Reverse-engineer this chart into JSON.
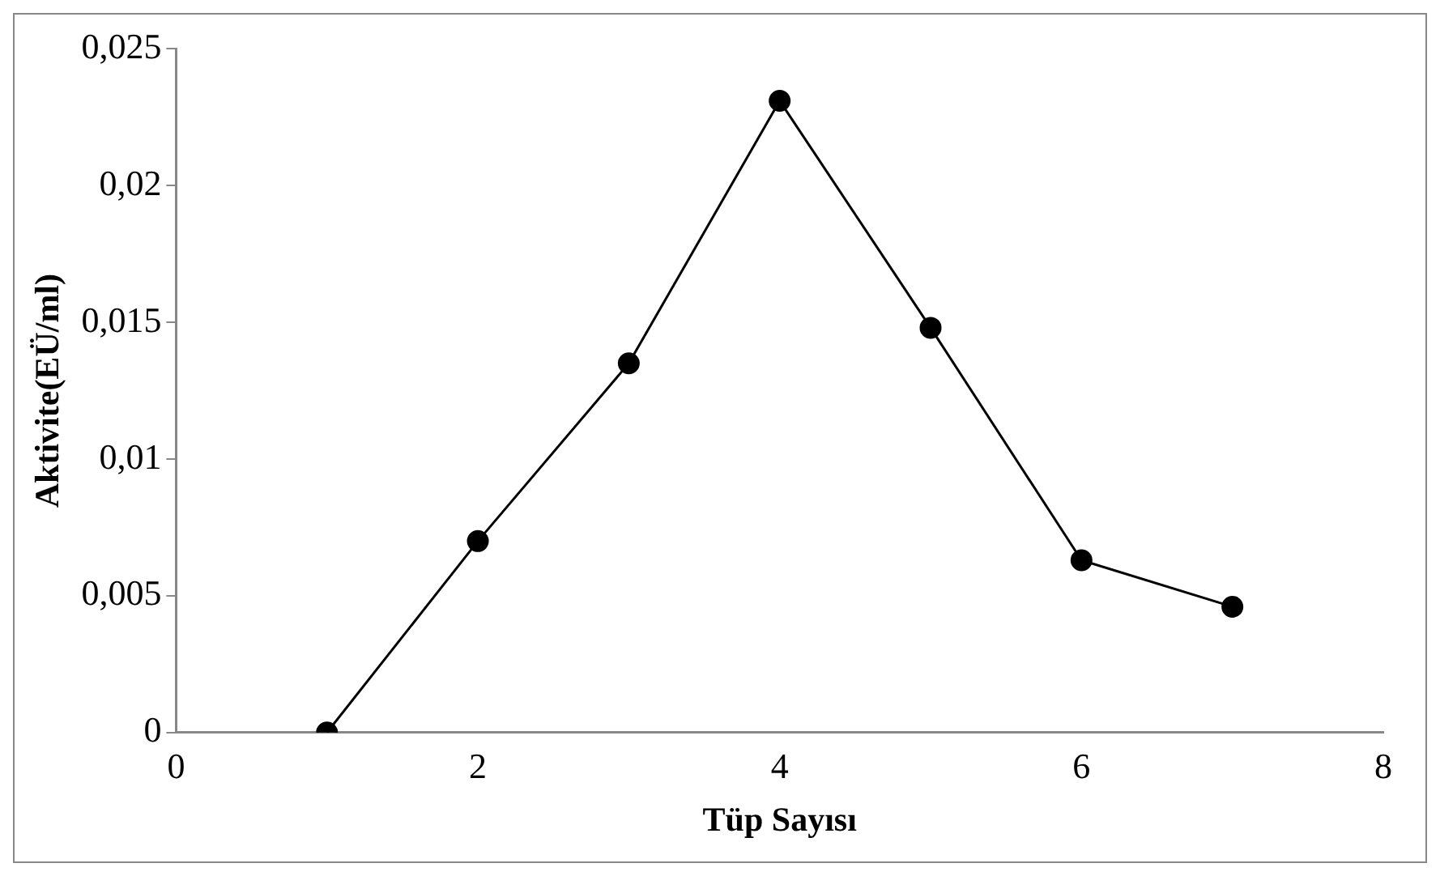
{
  "chart_data": {
    "type": "line",
    "xlabel": "Tüp Sayısı",
    "ylabel": "Aktivite(EÜ/ml)",
    "x": [
      1,
      2,
      3,
      4,
      5,
      6,
      7
    ],
    "series": [
      {
        "color": "#000000",
        "values": [
          0,
          0.007,
          0.0135,
          0.0231,
          0.0148,
          0.0063,
          0.0046
        ]
      }
    ],
    "xlim": [
      0,
      8
    ],
    "xticks": [
      0,
      2,
      4,
      6,
      8
    ],
    "ylim": [
      0,
      0.025
    ],
    "yticks": [
      0,
      {
        "value": 0.005,
        "label": "0,005"
      },
      {
        "value": 0.01,
        "label": "0,01"
      },
      {
        "value": 0.015,
        "label": "0,015"
      },
      {
        "value": 0.02,
        "label": "0,02"
      },
      {
        "value": 0.025,
        "label": "0,025"
      }
    ],
    "grid": false,
    "legend": false,
    "marker": "circle",
    "line_style": "solid"
  }
}
